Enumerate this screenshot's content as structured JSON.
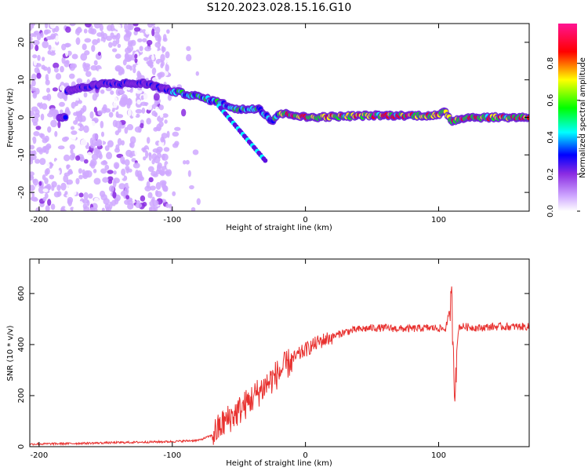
{
  "title": "S120.2023.028.15.16.G10",
  "chart_data": [
    {
      "type": "heatmap",
      "xlabel": "Height of straight line (km)",
      "ylabel": "Frequency (Hz)",
      "xlim": [
        -207,
        168
      ],
      "ylim": [
        -25,
        25
      ],
      "x_ticks": [
        -200,
        -100,
        0,
        100
      ],
      "y_ticks": [
        -20,
        -10,
        0,
        10,
        20
      ],
      "colorbar": {
        "label": "Normalized spectral amplitude",
        "range": [
          0,
          1
        ],
        "ticks": [
          "0.0",
          "0.2",
          "0.4",
          "0.6",
          "0.8"
        ],
        "colors": [
          "#ffffff",
          "#cfa8ff",
          "#8a2be2",
          "#0000ff",
          "#00ffff",
          "#00ff00",
          "#ffff00",
          "#ff0000",
          "#ff1493"
        ]
      },
      "ridge": [
        {
          "x": -180,
          "y": 7
        },
        {
          "x": -150,
          "y": 9
        },
        {
          "x": -120,
          "y": 9
        },
        {
          "x": -100,
          "y": 7
        },
        {
          "x": -80,
          "y": 5.5
        },
        {
          "x": -65,
          "y": 4
        },
        {
          "x": -50,
          "y": 2
        },
        {
          "x": -35,
          "y": 2.5
        },
        {
          "x": -25,
          "y": -1
        },
        {
          "x": -20,
          "y": 1
        },
        {
          "x": -10,
          "y": 0.8
        },
        {
          "x": 0,
          "y": 0
        },
        {
          "x": 50,
          "y": 0.5
        },
        {
          "x": 100,
          "y": 0.5
        },
        {
          "x": 105,
          "y": 1.5
        },
        {
          "x": 110,
          "y": -1
        },
        {
          "x": 120,
          "y": 0
        },
        {
          "x": 168,
          "y": 0
        }
      ],
      "noise_extent_x": [
        -207,
        -80
      ]
    },
    {
      "type": "line",
      "xlabel": "Height of straight line (km)",
      "ylabel": "SNR (10 * v/v)",
      "xlim": [
        -207,
        168
      ],
      "ylim": [
        0,
        735
      ],
      "x_ticks": [
        -200,
        -100,
        0,
        100
      ],
      "y_ticks": [
        0,
        200,
        400,
        600
      ],
      "color": "#e8312f",
      "series": [
        {
          "x": [
            -207,
            -180,
            -150,
            -120,
            -100,
            -80,
            -70,
            -60,
            -50,
            -40,
            -30,
            -20,
            -10,
            0,
            10,
            20,
            30,
            40,
            50,
            60,
            70,
            80,
            90,
            100,
            105,
            110,
            112,
            115,
            120,
            130,
            140,
            150,
            160,
            168
          ],
          "y": [
            10,
            12,
            15,
            18,
            20,
            25,
            45,
            100,
            140,
            190,
            240,
            290,
            340,
            380,
            410,
            430,
            450,
            460,
            465,
            465,
            462,
            462,
            465,
            465,
            460,
            560,
            240,
            470,
            470,
            465,
            470,
            470,
            470,
            470
          ]
        }
      ]
    }
  ]
}
